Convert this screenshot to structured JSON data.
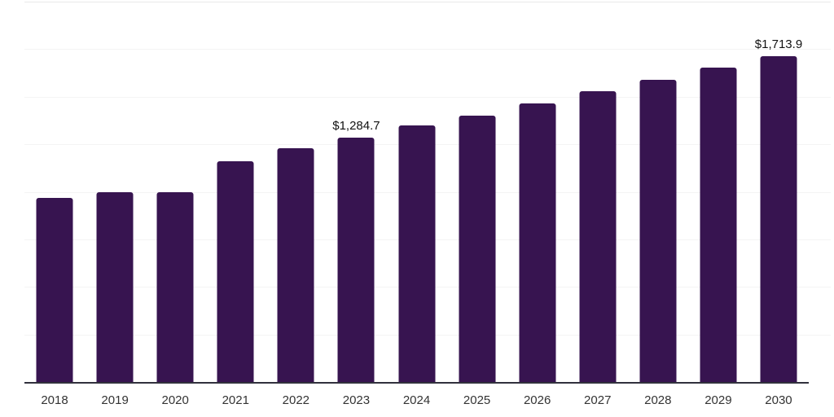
{
  "chart_data": {
    "type": "bar",
    "title": "",
    "xlabel": "",
    "ylabel": "",
    "categories": [
      "2018",
      "2019",
      "2020",
      "2021",
      "2022",
      "2023",
      "2024",
      "2025",
      "2026",
      "2027",
      "2028",
      "2029",
      "2030"
    ],
    "values": [
      970,
      1000,
      998,
      1160,
      1230,
      1284.7,
      1350,
      1400,
      1465,
      1530,
      1590,
      1655,
      1713.9
    ],
    "data_labels": {
      "2023": "$1,284.7",
      "2030": "$1,713.9"
    },
    "ylim": [
      0,
      2000
    ],
    "gridline_interval": 250,
    "grid": true,
    "legend_position": "none",
    "y_axis_tick_labels_visible": false,
    "colors": {
      "bar": "#371450",
      "axis_line": "#31313d",
      "gridline": "#f4f4f4",
      "top_gridline": "#e9e9e9",
      "tick_label": "#333333",
      "data_label": "#111111",
      "background": "#ffffff"
    }
  }
}
